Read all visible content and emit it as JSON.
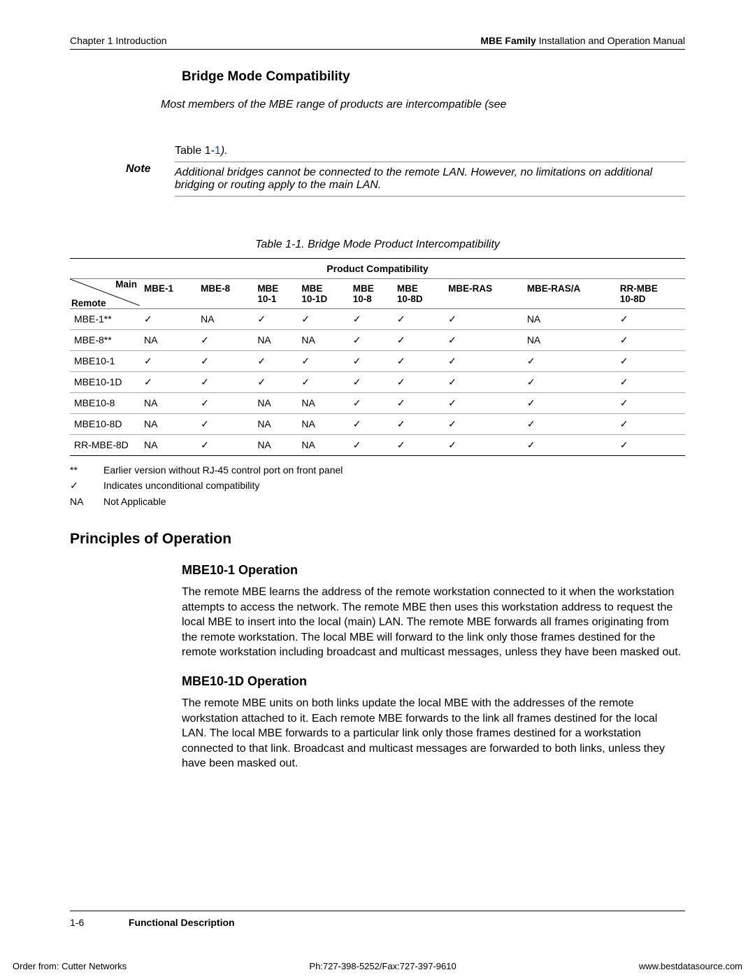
{
  "header": {
    "left": "Chapter 1  Introduction",
    "right_bold": "MBE Family",
    "right_rest": " Installation and Operation Manual"
  },
  "section_title": "Bridge Mode Compatibility",
  "intro": "Most members of the MBE range of products are intercompatible (see",
  "note": {
    "label": "Note",
    "top_text": "Table 1-1",
    "top_tail": ").",
    "bottom": "Additional bridges cannot be connected to the remote LAN. However, no limitations on additional bridging or routing apply to the main LAN."
  },
  "table": {
    "caption": "Table 1-1.  Bridge Mode Product Intercompatibility",
    "top_header": "Product Compatibility",
    "diag_top": "Main",
    "diag_bottom": "Remote",
    "columns": [
      "MBE-1",
      "MBE-8",
      "MBE 10-1",
      "MBE 10-1D",
      "MBE 10-8",
      "MBE 10-8D",
      "MBE-RAS",
      "MBE-RAS/A",
      "RR-MBE 10-8D"
    ],
    "rows": [
      {
        "label": "MBE-1**",
        "cells": [
          "✓",
          "NA",
          "✓",
          "✓",
          "✓",
          "✓",
          "✓",
          "NA",
          "✓"
        ]
      },
      {
        "label": "MBE-8**",
        "cells": [
          "NA",
          "✓",
          "NA",
          "NA",
          "✓",
          "✓",
          "✓",
          "NA",
          "✓"
        ]
      },
      {
        "label": "MBE10-1",
        "cells": [
          "✓",
          "✓",
          "✓",
          "✓",
          "✓",
          "✓",
          "✓",
          "✓",
          "✓"
        ]
      },
      {
        "label": "MBE10-1D",
        "cells": [
          "✓",
          "✓",
          "✓",
          "✓",
          "✓",
          "✓",
          "✓",
          "✓",
          "✓"
        ]
      },
      {
        "label": "MBE10-8",
        "cells": [
          "NA",
          "✓",
          "NA",
          "NA",
          "✓",
          "✓",
          "✓",
          "✓",
          "✓"
        ]
      },
      {
        "label": "MBE10-8D",
        "cells": [
          "NA",
          "✓",
          "NA",
          "NA",
          "✓",
          "✓",
          "✓",
          "✓",
          "✓"
        ]
      },
      {
        "label": "RR-MBE-8D",
        "cells": [
          "NA",
          "✓",
          "NA",
          "NA",
          "✓",
          "✓",
          "✓",
          "✓",
          "✓"
        ]
      }
    ]
  },
  "legend": [
    {
      "key": "**",
      "text": "Earlier version without RJ-45 control port on front panel"
    },
    {
      "key": "✓",
      "text": "Indicates unconditional compatibility"
    },
    {
      "key": "NA",
      "text": "Not Applicable"
    }
  ],
  "principles": {
    "heading": "Principles of Operation",
    "sub1": "MBE10-1 Operation",
    "p1": "The remote MBE learns the address of the remote workstation connected to it when the workstation attempts to access the network. The remote MBE then uses this workstation address to request the local MBE to insert into the local (main) LAN. The remote MBE forwards all frames originating from the remote workstation. The local MBE will forward to the link only those frames destined for the remote workstation including broadcast and multicast messages, unless they have been masked out.",
    "sub2": "MBE10-1D Operation",
    "p2": "The remote MBE units on both links update the local MBE with the addresses of the remote workstation attached to it. Each remote MBE forwards to the link all frames destined for the local LAN. The local MBE forwards to a particular link only those frames destined for a workstation connected to that link. Broadcast and multicast messages are forwarded to both links, unless they have been masked out."
  },
  "footer": {
    "page": "1-6",
    "section": "Functional Description"
  },
  "bottom": {
    "left": "Order from: Cutter Networks",
    "center": "Ph:727-398-5252/Fax:727-397-9610",
    "right": "www.bestdatasource.com"
  },
  "colors": {
    "link_blue": "#1a3fbf"
  }
}
